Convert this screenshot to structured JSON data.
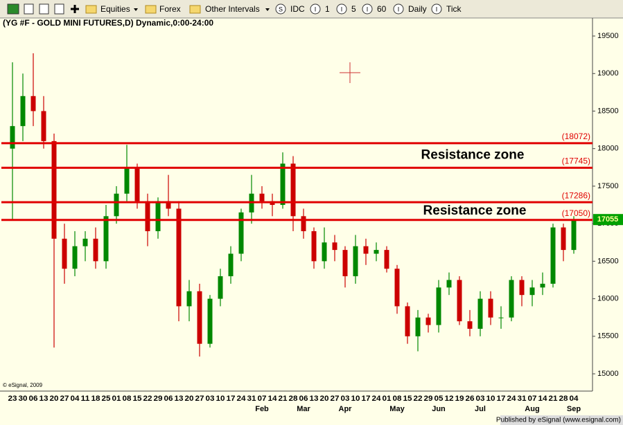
{
  "toolbar": {
    "items": [
      {
        "label": "Equities"
      },
      {
        "label": "Forex"
      },
      {
        "label": "Other Intervals"
      },
      {
        "icon": "S",
        "label": "IDC"
      },
      {
        "icon": "I",
        "label": "1"
      },
      {
        "icon": "I",
        "label": "5"
      },
      {
        "icon": "I",
        "label": "60"
      },
      {
        "icon": "I",
        "label": "Daily"
      },
      {
        "icon": "I",
        "label": "Tick"
      }
    ]
  },
  "chart_data": {
    "type": "candlestick",
    "title": "(YG #F - GOLD MINI FUTURES,D) Dynamic,0:00-24:00",
    "categories": [
      "23",
      "30",
      "06",
      "13",
      "20",
      "27",
      "04",
      "11",
      "18",
      "25",
      "01",
      "08",
      "15",
      "22",
      "29",
      "06",
      "13",
      "20",
      "27",
      "03",
      "10",
      "17",
      "24",
      "31",
      "07",
      "14",
      "21",
      "28",
      "06",
      "13",
      "20",
      "27",
      "03",
      "10",
      "17",
      "24",
      "01",
      "08",
      "15",
      "22",
      "29",
      "05",
      "12",
      "19",
      "26",
      "03",
      "10",
      "17",
      "24",
      "31",
      "07",
      "14",
      "21",
      "28",
      "04"
    ],
    "months": [
      null,
      null,
      null,
      null,
      null,
      null,
      null,
      null,
      null,
      null,
      null,
      null,
      null,
      null,
      null,
      null,
      null,
      null,
      null,
      null,
      null,
      null,
      null,
      null,
      "Feb",
      null,
      null,
      null,
      "Mar",
      null,
      null,
      null,
      "Apr",
      null,
      null,
      null,
      null,
      "May",
      null,
      null,
      null,
      "Jun",
      null,
      null,
      null,
      "Jul",
      null,
      null,
      null,
      null,
      "Aug",
      null,
      null,
      null,
      "Sep"
    ],
    "open": [
      18000,
      18300,
      18700,
      18500,
      18100,
      16800,
      16400,
      16700,
      16800,
      16500,
      17100,
      17400,
      17750,
      17300,
      16900,
      17300,
      17200,
      15900,
      16100,
      15400,
      16000,
      16300,
      16600,
      17150,
      17400,
      17300,
      17250,
      17800,
      17100,
      16900,
      16500,
      16750,
      16650,
      16300,
      16700,
      16600,
      16650,
      16400,
      15900,
      15500,
      15750,
      15650,
      16150,
      16250,
      15700,
      15600,
      16000,
      15750,
      15750,
      16250,
      16050,
      16150,
      16200,
      16950,
      16650
    ],
    "high": [
      19150,
      19000,
      19270,
      18700,
      18200,
      17000,
      16900,
      16900,
      16950,
      17250,
      17500,
      18050,
      17800,
      17400,
      17350,
      17650,
      17300,
      16250,
      16200,
      16050,
      16400,
      16700,
      17200,
      17650,
      17500,
      17400,
      17950,
      17900,
      17200,
      16950,
      16950,
      16850,
      16700,
      16850,
      16800,
      16750,
      16700,
      16450,
      15950,
      15850,
      15800,
      16250,
      16350,
      16300,
      15850,
      16100,
      16100,
      15900,
      16300,
      16300,
      16250,
      16350,
      17000,
      17000,
      17100
    ],
    "low": [
      17050,
      18100,
      18300,
      18000,
      15350,
      16200,
      16300,
      16500,
      16400,
      16400,
      17000,
      17300,
      17200,
      16700,
      16800,
      17100,
      15700,
      15700,
      15230,
      15350,
      15900,
      16200,
      16500,
      17000,
      17200,
      17100,
      17200,
      16900,
      16800,
      16400,
      16400,
      16500,
      16150,
      16200,
      16450,
      16500,
      16350,
      15800,
      15400,
      15300,
      15550,
      15550,
      16050,
      15650,
      15500,
      15500,
      15650,
      15600,
      15700,
      15900,
      15900,
      16050,
      16150,
      16500,
      16600
    ],
    "close": [
      18300,
      18700,
      18500,
      18100,
      16800,
      16400,
      16700,
      16800,
      16500,
      17100,
      17400,
      17750,
      17300,
      16900,
      17300,
      17200,
      15900,
      16100,
      15400,
      16000,
      16300,
      16600,
      17150,
      17400,
      17300,
      17250,
      17800,
      17100,
      16900,
      16500,
      16750,
      16650,
      16300,
      16700,
      16600,
      16650,
      16400,
      15900,
      15500,
      15750,
      15650,
      16150,
      16250,
      15700,
      15600,
      16000,
      15750,
      15750,
      16250,
      16050,
      16150,
      16200,
      16950,
      16650,
      17055
    ],
    "up_color": "#008800",
    "down_color": "#cc0000",
    "ylim": [
      14770,
      19740
    ],
    "yticks": [
      15000,
      15500,
      16000,
      16500,
      17000,
      17500,
      18000,
      18500,
      19000,
      19500
    ],
    "levels": [
      {
        "value": 18072,
        "label": "(18072)"
      },
      {
        "value": 17745,
        "label": "(17745)"
      },
      {
        "value": 17286,
        "label": "(17286)"
      },
      {
        "value": 17050,
        "label": "(17050)"
      }
    ],
    "level_color": "#e00000",
    "annotations": [
      "Resistance zone",
      "Resistance zone"
    ],
    "last_price": 17055,
    "copyright": "© eSignal, 2009",
    "publisher": "Published by eSignal (www.esignal.com)"
  }
}
